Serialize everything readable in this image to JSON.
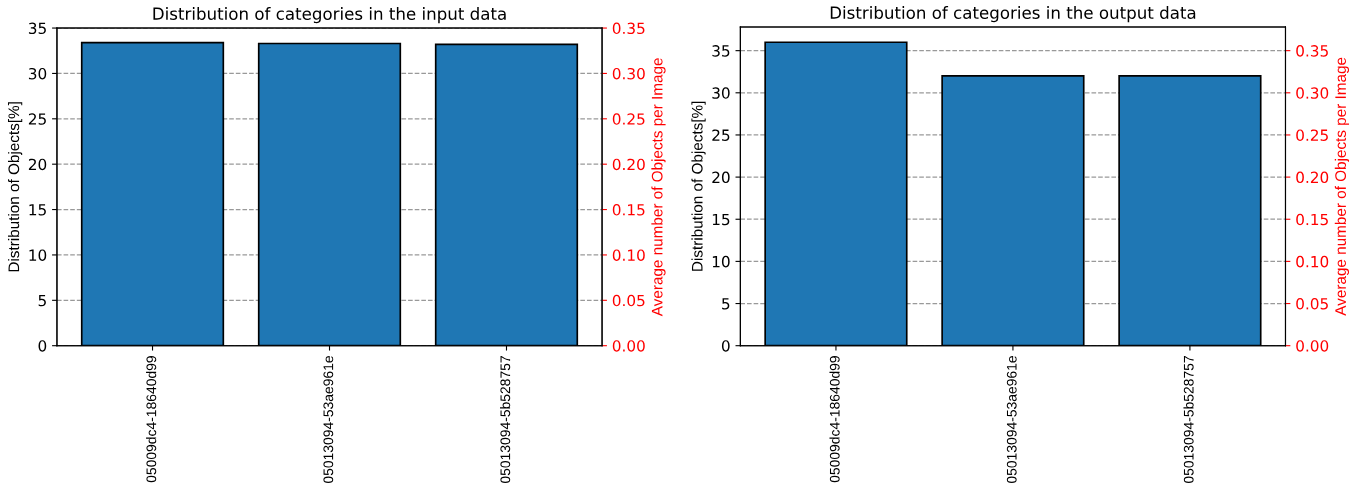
{
  "chart_data": [
    {
      "type": "bar",
      "title": "Distribution of categories in the input data",
      "ylabel": "Distribution of Objects[%]",
      "y2label": "Average number of Objects per Image",
      "categories": [
        "05009dc4-18640d99",
        "05013094-53ae961e",
        "05013094-5b528757"
      ],
      "series": [
        {
          "color": "#1f77b4",
          "values": [
            33.4,
            33.3,
            33.2
          ]
        }
      ],
      "ylim": [
        0,
        35
      ],
      "yticks": [
        0,
        5,
        10,
        15,
        20,
        25,
        30,
        35
      ],
      "y2lim": [
        0,
        0.35
      ],
      "y2ticks": [
        {
          "value": 0,
          "label": "0.00"
        },
        {
          "value": 0.05,
          "label": "0.05"
        },
        {
          "value": 0.1,
          "label": "0.10"
        },
        {
          "value": 0.15,
          "label": "0.15"
        },
        {
          "value": 0.2,
          "label": "0.20"
        },
        {
          "value": 0.25,
          "label": "0.25"
        },
        {
          "value": 0.3,
          "label": "0.30"
        },
        {
          "value": 0.35,
          "label": "0.35"
        }
      ],
      "grid": "y",
      "legend": false
    },
    {
      "type": "bar",
      "title": "Distribution of categories in the output data",
      "ylabel": "Distribution of Objects[%]",
      "y2label": "Average number of Objects per Image",
      "categories": [
        "05009dc4-18640d99",
        "05013094-53ae961e",
        "05013094-5b528757"
      ],
      "series": [
        {
          "color": "#1f77b4",
          "values": [
            36,
            32,
            32
          ]
        }
      ],
      "ylim": [
        0,
        37.8
      ],
      "yticks": [
        0,
        5,
        10,
        15,
        20,
        25,
        30,
        35
      ],
      "y2lim": [
        0,
        0.378
      ],
      "y2ticks": [
        {
          "value": 0,
          "label": "0.00"
        },
        {
          "value": 0.05,
          "label": "0.05"
        },
        {
          "value": 0.1,
          "label": "0.10"
        },
        {
          "value": 0.15,
          "label": "0.15"
        },
        {
          "value": 0.2,
          "label": "0.20"
        },
        {
          "value": 0.25,
          "label": "0.25"
        },
        {
          "value": 0.3,
          "label": "0.30"
        },
        {
          "value": 0.35,
          "label": "0.35"
        }
      ],
      "grid": "y",
      "legend": false
    }
  ]
}
